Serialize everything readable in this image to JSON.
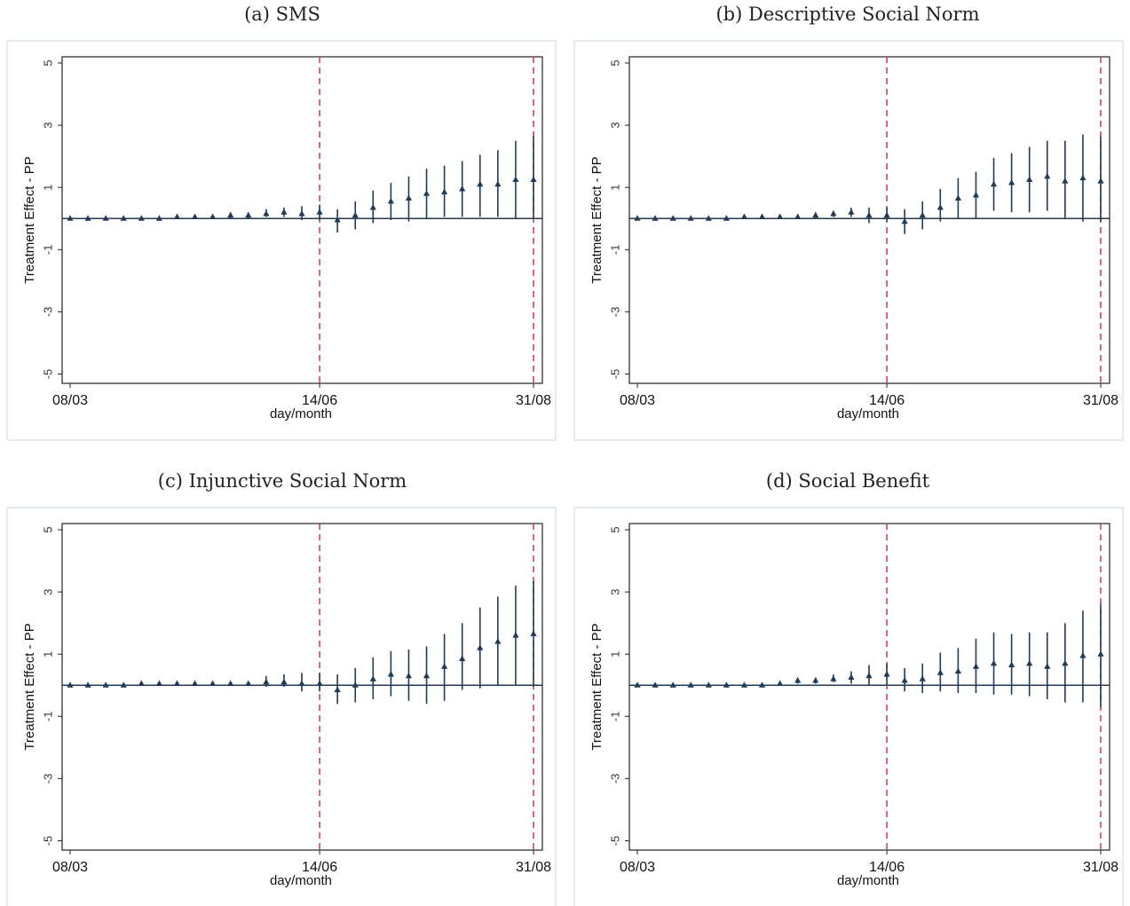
{
  "figure": {
    "colors": {
      "series": "#1f3b57",
      "vline": "#c8365c",
      "frame": "#e4ebee",
      "axis": "#222222"
    }
  },
  "chart_data": [
    {
      "type": "scatter",
      "title": "(a) SMS",
      "xlabel": "day/month",
      "ylabel": "Treatment Effect - PP",
      "x_ticks": [
        "08/03",
        "14/06",
        "31/08"
      ],
      "y_ticks": [
        5,
        3,
        1,
        -1,
        -3,
        -5
      ],
      "ylim": [
        -5.3,
        5.2
      ],
      "vlines": [
        "14/06",
        "31/08"
      ],
      "n_points": 27,
      "estimates": [
        0.0,
        0.0,
        0.0,
        0.0,
        0.0,
        0.0,
        0.05,
        0.05,
        0.05,
        0.1,
        0.1,
        0.15,
        0.2,
        0.15,
        0.2,
        -0.05,
        0.1,
        0.35,
        0.55,
        0.65,
        0.8,
        0.85,
        0.95,
        1.1,
        1.1,
        1.25,
        1.25
      ],
      "ci_low": [
        -0.05,
        -0.05,
        -0.05,
        -0.05,
        -0.05,
        -0.05,
        0.0,
        0.0,
        0.0,
        0.0,
        0.0,
        0.05,
        0.05,
        -0.05,
        -0.05,
        -0.45,
        -0.35,
        -0.15,
        -0.05,
        -0.1,
        0.0,
        0.05,
        0.05,
        0.05,
        0.05,
        0.0,
        0.0
      ],
      "ci_high": [
        0.05,
        0.05,
        0.05,
        0.05,
        0.05,
        0.05,
        0.1,
        0.1,
        0.1,
        0.2,
        0.2,
        0.3,
        0.35,
        0.4,
        0.45,
        0.3,
        0.55,
        0.9,
        1.15,
        1.35,
        1.6,
        1.7,
        1.85,
        2.05,
        2.2,
        2.5,
        2.65
      ]
    },
    {
      "type": "scatter",
      "title": "(b) Descriptive Social Norm",
      "xlabel": "day/month",
      "ylabel": "Treatment Effect - PP",
      "x_ticks": [
        "08/03",
        "14/06",
        "31/08"
      ],
      "y_ticks": [
        5,
        3,
        1,
        -1,
        -3,
        -5
      ],
      "ylim": [
        -5.3,
        5.2
      ],
      "vlines": [
        "14/06",
        "31/08"
      ],
      "n_points": 27,
      "estimates": [
        0.0,
        0.0,
        0.0,
        0.0,
        0.0,
        0.0,
        0.05,
        0.05,
        0.05,
        0.05,
        0.1,
        0.15,
        0.2,
        0.1,
        0.1,
        -0.1,
        0.1,
        0.35,
        0.65,
        0.75,
        1.1,
        1.15,
        1.25,
        1.35,
        1.2,
        1.3,
        1.2
      ],
      "ci_low": [
        -0.05,
        -0.05,
        -0.05,
        -0.05,
        -0.05,
        -0.05,
        0.0,
        0.0,
        0.0,
        0.0,
        0.0,
        0.05,
        0.05,
        -0.15,
        -0.1,
        -0.5,
        -0.35,
        -0.1,
        0.0,
        0.0,
        0.25,
        0.2,
        0.2,
        0.25,
        0.0,
        -0.1,
        -0.1
      ],
      "ci_high": [
        0.05,
        0.05,
        0.05,
        0.05,
        0.05,
        0.05,
        0.1,
        0.1,
        0.1,
        0.1,
        0.2,
        0.25,
        0.35,
        0.35,
        0.35,
        0.3,
        0.55,
        0.95,
        1.3,
        1.5,
        1.95,
        2.1,
        2.3,
        2.5,
        2.5,
        2.7,
        2.65
      ]
    },
    {
      "type": "scatter",
      "title": "(c) Injunctive Social Norm",
      "xlabel": "day/month",
      "ylabel": "Treatment Effect - PP",
      "x_ticks": [
        "08/03",
        "14/06",
        "31/08"
      ],
      "y_ticks": [
        5,
        3,
        1,
        -1,
        -3,
        -5
      ],
      "ylim": [
        -5.3,
        5.2
      ],
      "vlines": [
        "14/06",
        "31/08"
      ],
      "n_points": 27,
      "estimates": [
        0.0,
        0.0,
        0.0,
        0.0,
        0.05,
        0.05,
        0.05,
        0.05,
        0.05,
        0.05,
        0.05,
        0.1,
        0.1,
        0.05,
        0.05,
        -0.15,
        0.0,
        0.2,
        0.35,
        0.3,
        0.3,
        0.6,
        0.85,
        1.2,
        1.4,
        1.6,
        1.65
      ],
      "ci_low": [
        -0.05,
        -0.05,
        -0.05,
        -0.05,
        0.0,
        0.0,
        0.0,
        0.0,
        0.0,
        0.0,
        0.0,
        -0.05,
        -0.05,
        -0.2,
        -0.2,
        -0.6,
        -0.55,
        -0.45,
        -0.35,
        -0.5,
        -0.6,
        -0.5,
        -0.15,
        -0.1,
        0.0,
        0.0,
        -0.05
      ],
      "ci_high": [
        0.05,
        0.05,
        0.05,
        0.05,
        0.1,
        0.1,
        0.1,
        0.1,
        0.1,
        0.1,
        0.1,
        0.3,
        0.35,
        0.4,
        0.4,
        0.35,
        0.55,
        0.9,
        1.1,
        1.15,
        1.25,
        1.65,
        2.0,
        2.5,
        2.85,
        3.2,
        3.35
      ]
    },
    {
      "type": "scatter",
      "title": "(d) Social Benefit",
      "xlabel": "day/month",
      "ylabel": "Treatment Effect - PP",
      "x_ticks": [
        "08/03",
        "14/06",
        "31/08"
      ],
      "y_ticks": [
        5,
        3,
        1,
        -1,
        -3,
        -5
      ],
      "ylim": [
        -5.3,
        5.2
      ],
      "vlines": [
        "14/06",
        "31/08"
      ],
      "n_points": 27,
      "estimates": [
        0.0,
        0.0,
        0.0,
        0.0,
        0.0,
        0.0,
        0.0,
        0.0,
        0.05,
        0.15,
        0.15,
        0.2,
        0.25,
        0.3,
        0.35,
        0.15,
        0.2,
        0.4,
        0.45,
        0.6,
        0.7,
        0.65,
        0.7,
        0.6,
        0.7,
        0.95,
        1.0
      ],
      "ci_low": [
        -0.05,
        -0.05,
        -0.05,
        -0.05,
        -0.05,
        -0.05,
        -0.05,
        -0.05,
        0.0,
        0.05,
        0.05,
        0.1,
        0.05,
        0.0,
        0.0,
        -0.2,
        -0.25,
        -0.2,
        -0.25,
        -0.25,
        -0.3,
        -0.3,
        -0.35,
        -0.45,
        -0.55,
        -0.55,
        -0.7
      ],
      "ci_high": [
        0.05,
        0.05,
        0.05,
        0.05,
        0.05,
        0.05,
        0.05,
        0.05,
        0.1,
        0.25,
        0.25,
        0.35,
        0.45,
        0.65,
        0.7,
        0.55,
        0.7,
        1.05,
        1.2,
        1.5,
        1.7,
        1.65,
        1.7,
        1.7,
        2.0,
        2.4,
        2.6
      ]
    }
  ]
}
